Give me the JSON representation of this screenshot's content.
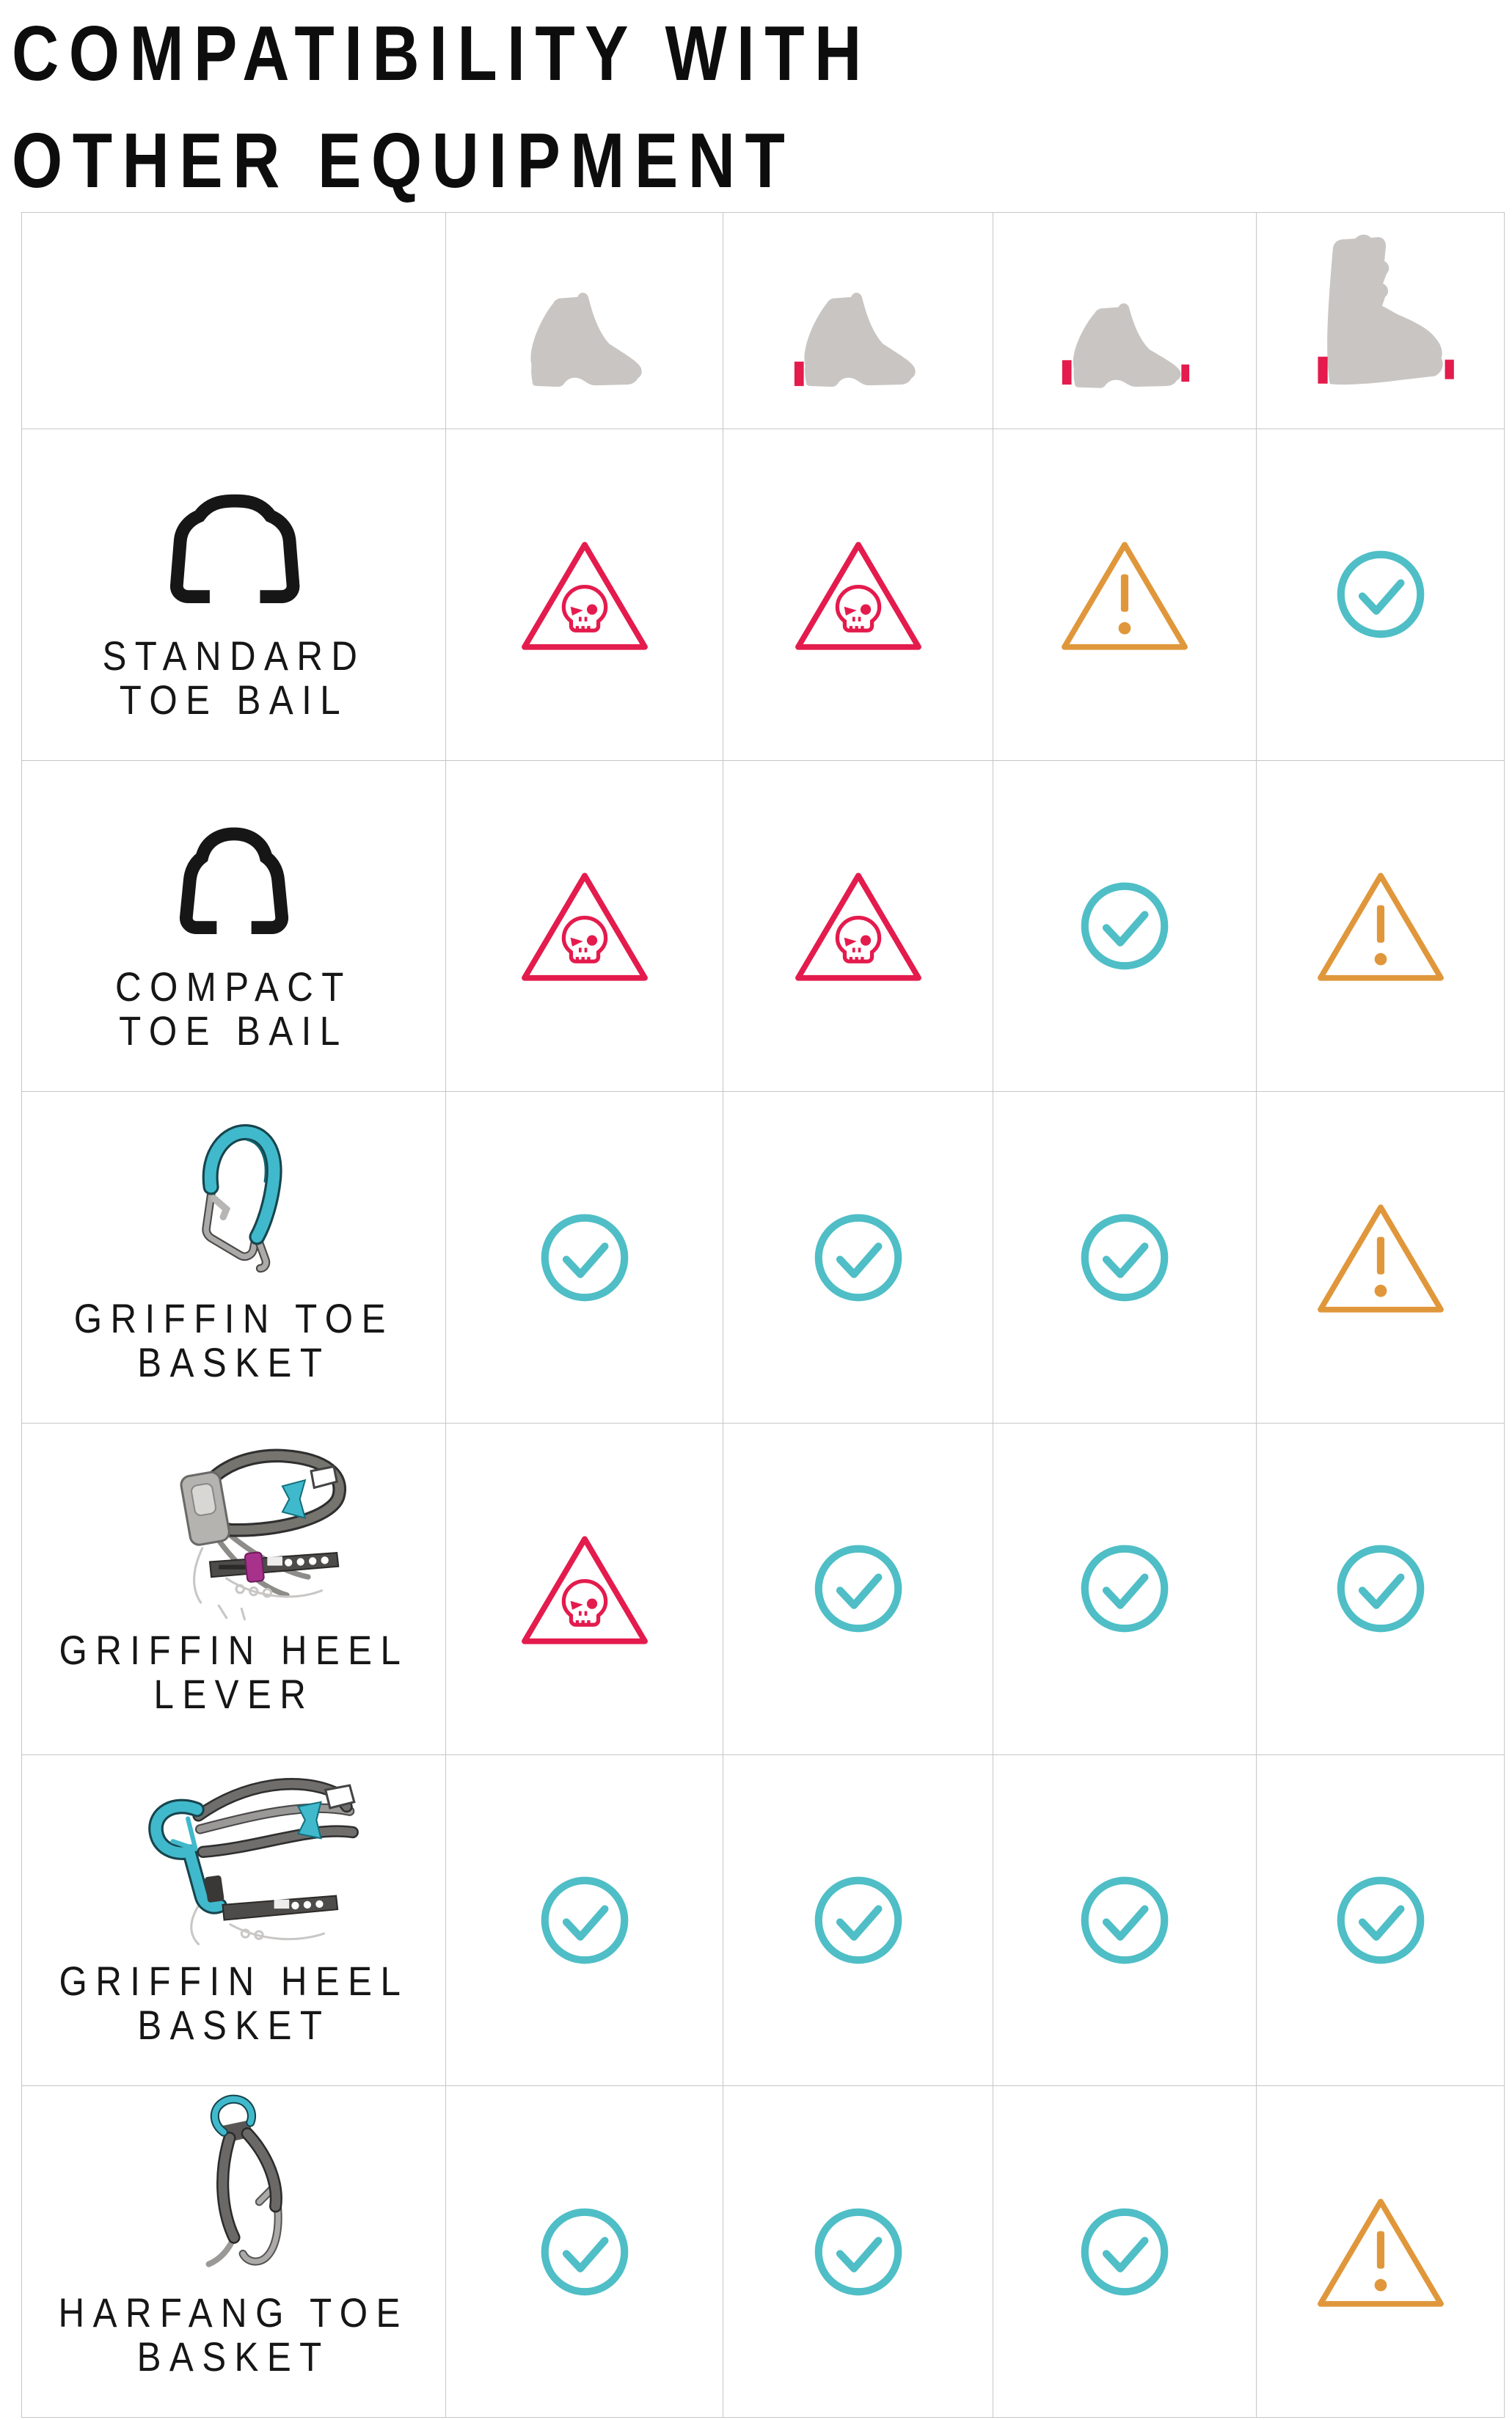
{
  "title": {
    "line1": "COMPATIBILITY WITH",
    "line2": "OTHER EQUIPMENT"
  },
  "table": {
    "columns": [
      {
        "icon": "boot-without-welts-icon"
      },
      {
        "icon": "boot-heel-welt-icon"
      },
      {
        "icon": "boot-toe-and-heel-welts-icon"
      },
      {
        "icon": "ski-boot-toe-and-heel-welts-icon"
      }
    ],
    "rows": [
      {
        "icon": "standard-toe-bail-icon",
        "label_line1": "STANDARD",
        "label_line2": "TOE BAIL",
        "cells": [
          "danger",
          "danger",
          "warning",
          "ok"
        ]
      },
      {
        "icon": "compact-toe-bail-icon",
        "label_line1": "COMPACT",
        "label_line2": "TOE BAIL",
        "cells": [
          "danger",
          "danger",
          "ok",
          "warning"
        ]
      },
      {
        "icon": "griffin-toe-basket-icon",
        "label_line1": "GRIFFIN TOE",
        "label_line2": "BASKET",
        "cells": [
          "ok",
          "ok",
          "ok",
          "warning"
        ]
      },
      {
        "icon": "griffin-heel-lever-icon",
        "label_line1": "GRIFFIN HEEL",
        "label_line2": "LEVER",
        "cells": [
          "danger",
          "ok",
          "ok",
          "ok"
        ]
      },
      {
        "icon": "griffin-heel-basket-icon",
        "label_line1": "GRIFFIN HEEL",
        "label_line2": "BASKET",
        "cells": [
          "ok",
          "ok",
          "ok",
          "ok"
        ]
      },
      {
        "icon": "harfang-toe-basket-icon",
        "label_line1": "HARFANG TOE",
        "label_line2": "BASKET",
        "cells": [
          "ok",
          "ok",
          "ok",
          "warning"
        ]
      }
    ],
    "cell_icon_meanings": {
      "danger": "skull-warning",
      "warning": "caution",
      "ok": "compatible-check"
    }
  },
  "colors": {
    "danger": "#E41B4D",
    "warning": "#E0973B",
    "ok": "#4FBEC6",
    "boot_gray": "#C9C5C2",
    "welt_red": "#E41B4D",
    "grid_line": "#C6C6C6",
    "text": "#151515",
    "accent_teal": "#41B9CC",
    "part_gray": "#6E6C6A"
  }
}
